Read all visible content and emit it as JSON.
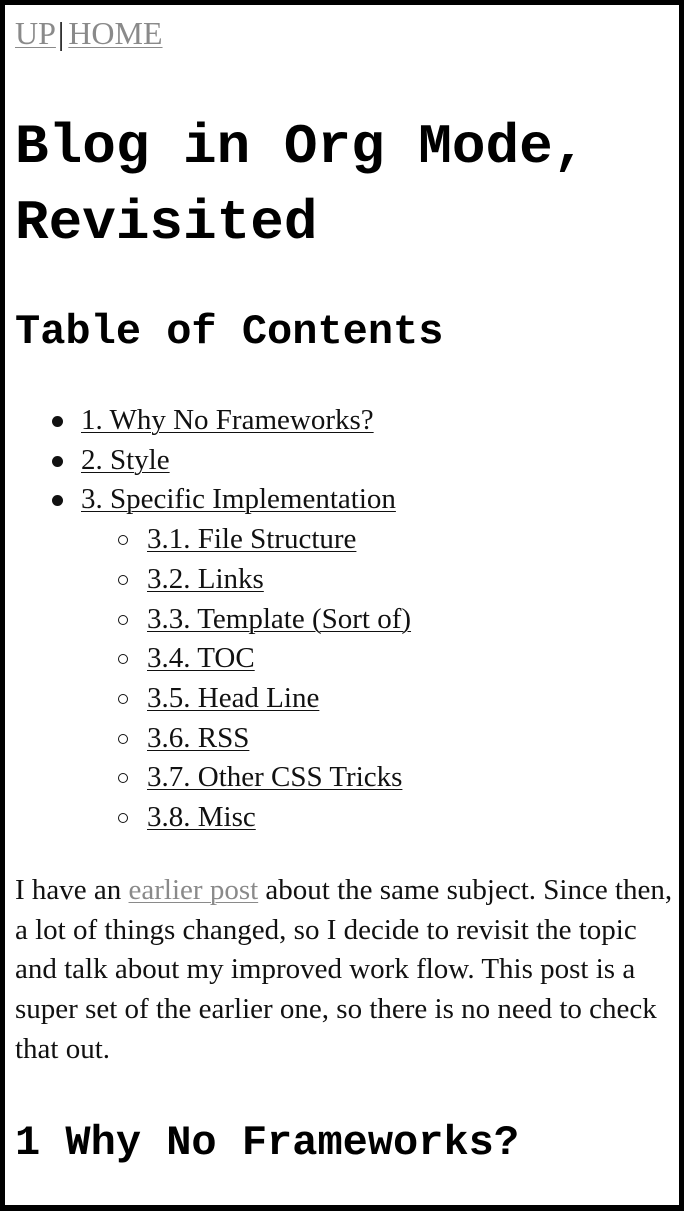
{
  "nav": {
    "up_label": "UP",
    "separator": "|",
    "home_label": "HOME"
  },
  "page": {
    "title": "Blog in Org Mode, Revisited"
  },
  "toc": {
    "heading": "Table of Contents",
    "items": [
      {
        "label": "1. Why No Frameworks?",
        "level": 1
      },
      {
        "label": "2. Style",
        "level": 1
      },
      {
        "label": "3. Specific Implementation",
        "level": 1
      },
      {
        "label": "3.1. File Structure",
        "level": 2
      },
      {
        "label": "3.2. Links",
        "level": 2
      },
      {
        "label": "3.3. Template (Sort of)",
        "level": 2
      },
      {
        "label": "3.4. TOC",
        "level": 2
      },
      {
        "label": "3.5. Head Line",
        "level": 2
      },
      {
        "label": "3.6. RSS",
        "level": 2
      },
      {
        "label": "3.7. Other CSS Tricks",
        "level": 2
      },
      {
        "label": "3.8. Misc",
        "level": 2
      }
    ]
  },
  "intro": {
    "text_before_link": "I have an ",
    "link_label": "earlier post",
    "text_after_link": " about the same subject. Since then, a lot of things changed, so I decide to revisit the topic and talk about my improved work flow. This post is a super set of the earlier one, so there is no need to check that out."
  },
  "section1": {
    "heading": "1 Why No Frameworks?"
  },
  "colors": {
    "link_muted": "#8a8a8a",
    "text": "#111111",
    "border": "#000000",
    "background": "#ffffff"
  }
}
